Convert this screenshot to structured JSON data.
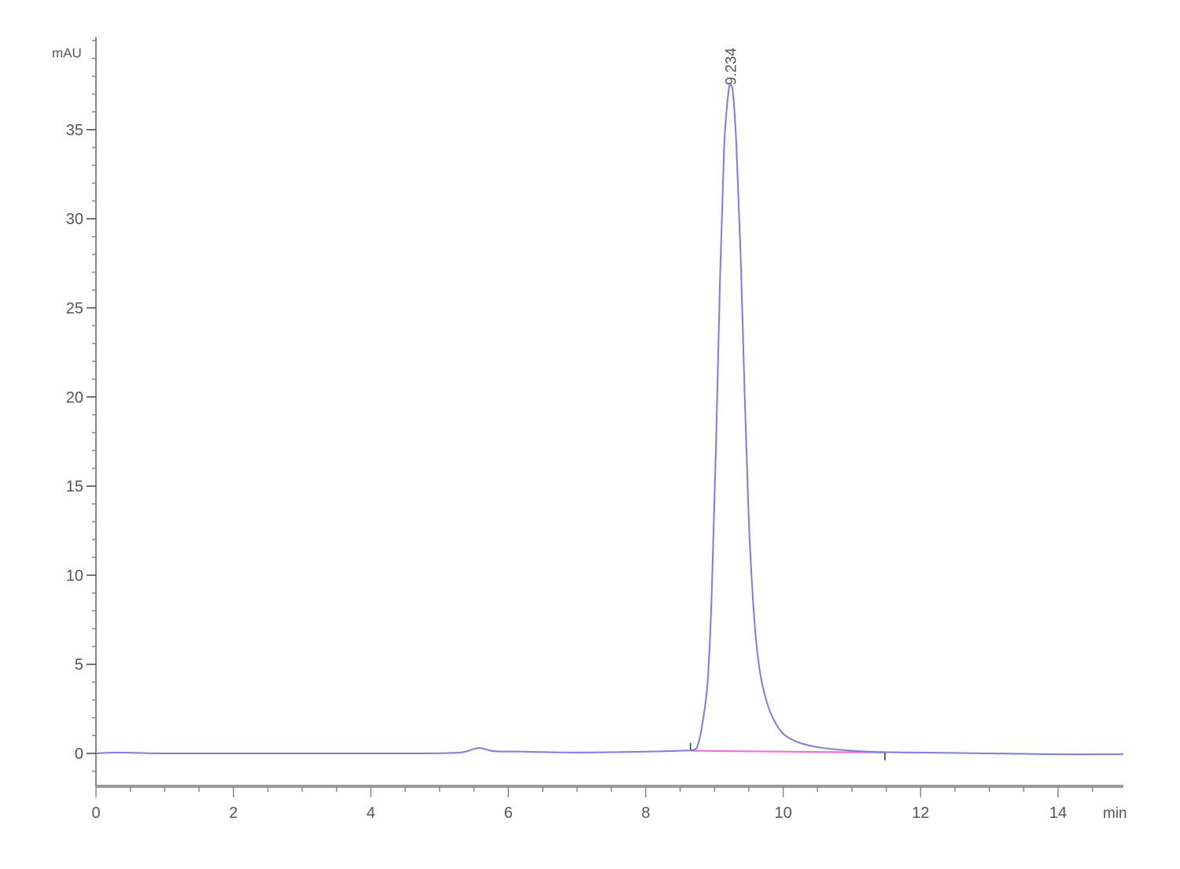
{
  "chart_data": {
    "type": "line",
    "title": "",
    "xlabel": "min",
    "ylabel": "mAU",
    "xlim": [
      0,
      14.95
    ],
    "ylim": [
      -1.85,
      40.2
    ],
    "x_ticks": [
      0,
      2,
      4,
      6,
      8,
      10,
      12,
      14
    ],
    "y_ticks": [
      0,
      5,
      10,
      15,
      20,
      25,
      30,
      35
    ],
    "x_minor_step": 0.5,
    "y_minor_step": 1,
    "grid": false,
    "colors": {
      "signal": "#7b7bf0",
      "baseline": "#ff66dd",
      "axis": "#888888"
    },
    "series": [
      {
        "x": [
          0,
          0.3,
          1,
          2,
          3,
          4,
          4.8,
          5.3,
          5.5,
          5.6,
          5.8,
          6.2,
          7,
          8,
          8.5,
          8.7,
          8.76,
          8.82,
          8.9,
          8.96,
          9.02,
          9.08,
          9.14,
          9.2,
          9.234,
          9.27,
          9.32,
          9.38,
          9.44,
          9.5,
          9.58,
          9.66,
          9.76,
          9.86,
          10.0,
          10.2,
          10.5,
          11.0,
          11.5,
          12,
          13,
          14,
          14.95
        ],
        "y": [
          0,
          0.05,
          0,
          0,
          0,
          0,
          0,
          0.05,
          0.25,
          0.3,
          0.12,
          0.1,
          0.05,
          0.1,
          0.15,
          0.2,
          0.5,
          1.6,
          4.0,
          9.0,
          17.0,
          26.5,
          34.0,
          37.0,
          37.5,
          37.0,
          34.0,
          28.0,
          20.0,
          13.0,
          7.5,
          4.6,
          2.9,
          1.9,
          1.1,
          0.65,
          0.35,
          0.15,
          0.07,
          0.05,
          0,
          -0.05,
          -0.05
        ]
      }
    ],
    "peaks": [
      {
        "label": "9.234",
        "retention_time": 9.234,
        "height": 37.5,
        "baseline_start": [
          8.65,
          0.15
        ],
        "baseline_end": [
          11.48,
          0.05
        ]
      }
    ]
  }
}
